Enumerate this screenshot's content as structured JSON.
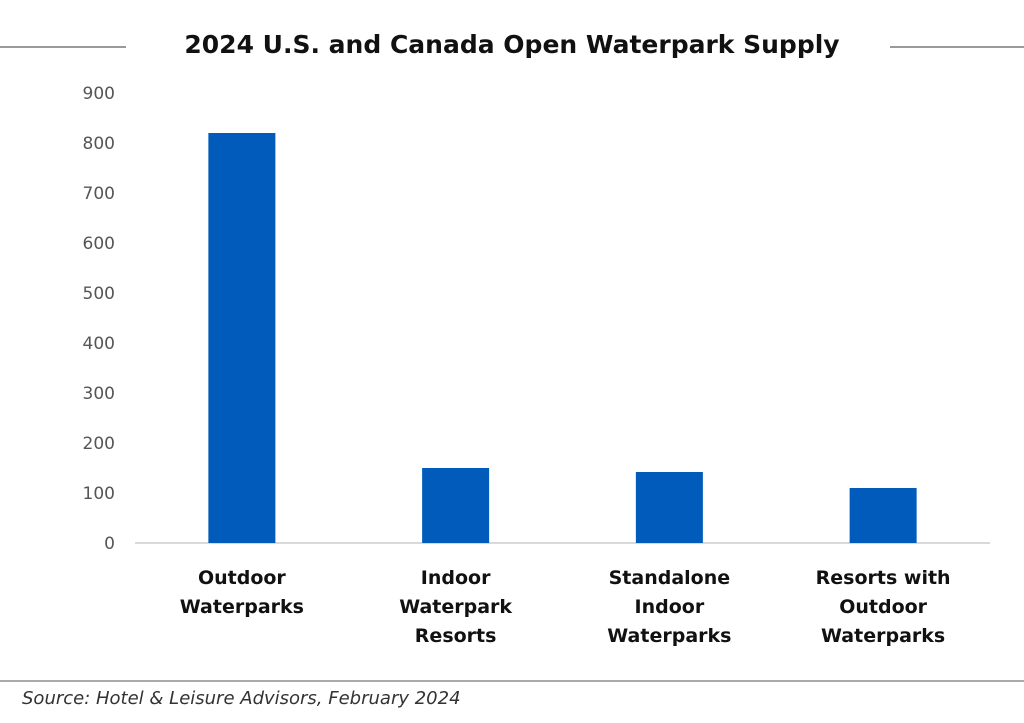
{
  "chart_data": {
    "type": "bar",
    "title": "2024 U.S. and Canada Open Waterpark Supply",
    "categories": [
      [
        "Outdoor",
        "Waterparks"
      ],
      [
        "Indoor",
        "Waterpark",
        "Resorts"
      ],
      [
        "Standalone",
        "Indoor",
        "Waterparks"
      ],
      [
        "Resorts with",
        "Outdoor",
        "Waterparks"
      ]
    ],
    "values": [
      820,
      150,
      142,
      110
    ],
    "ylim": [
      0,
      900
    ],
    "yticks": [
      "0",
      "100",
      "200",
      "300",
      "400",
      "500",
      "600",
      "700",
      "800",
      "900"
    ],
    "xlabel": "",
    "ylabel": "",
    "grid": false,
    "bar_color": "#005bbb"
  },
  "source": "Source: Hotel & Leisure Advisors, February 2024"
}
